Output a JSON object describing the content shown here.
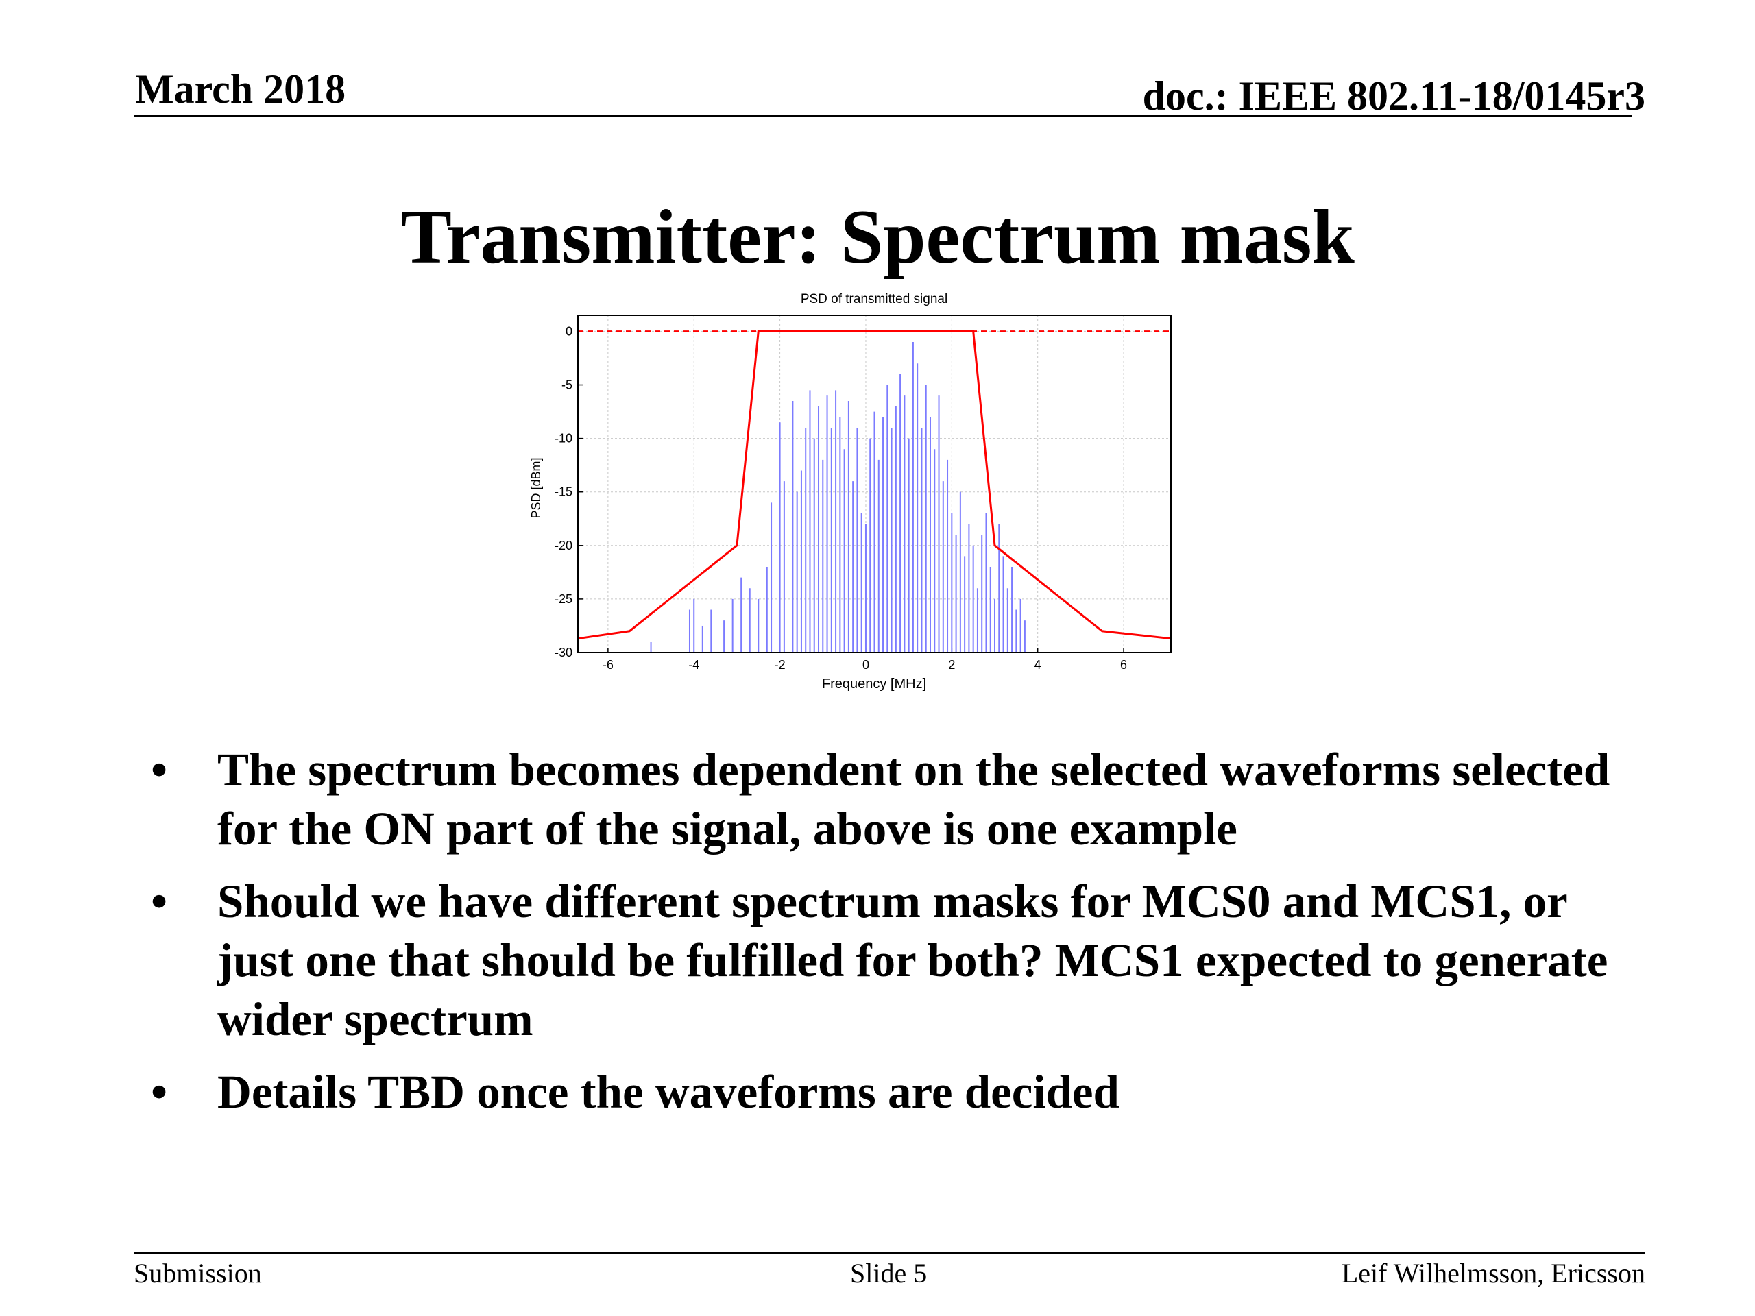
{
  "header": {
    "date": "March 2018",
    "doc": "doc.: IEEE 802.11-18/0145r3"
  },
  "title": "Transmitter: Spectrum mask",
  "chart_data": {
    "type": "line",
    "title": "PSD of transmitted signal",
    "xlabel": "Frequency [MHz]",
    "ylabel": "PSD [dBm]",
    "xlim": [
      -6.7,
      7.1
    ],
    "ylim": [
      -30,
      1.5
    ],
    "xticks": [
      -6,
      -4,
      -2,
      0,
      2,
      4,
      6
    ],
    "yticks": [
      0,
      -5,
      -10,
      -15,
      -20,
      -25,
      -30
    ],
    "grid": true,
    "colors": {
      "mask": "#ff0000",
      "psd": "#7b7bff"
    },
    "series": [
      {
        "x": [
          -6.7,
          -5.5,
          -3.0,
          -2.5,
          2.5,
          3.0,
          5.5,
          7.1
        ],
        "y": [
          -28.7,
          -28,
          -20,
          0,
          0,
          -20,
          -28,
          -28.7
        ],
        "style": "solid"
      },
      {
        "x": [
          -6.7,
          7.1
        ],
        "y": [
          0,
          0
        ],
        "style": "dashed"
      },
      {
        "x": [
          -5.0,
          -4.1,
          -4.0,
          -3.8,
          -3.6,
          -3.3,
          -3.1,
          -2.9,
          -2.7,
          -2.5,
          -2.3,
          -2.2,
          -2.0,
          -1.9,
          -1.7,
          -1.6,
          -1.5,
          -1.4,
          -1.3,
          -1.2,
          -1.1,
          -1.0,
          -0.9,
          -0.8,
          -0.7,
          -0.6,
          -0.5,
          -0.4,
          -0.3,
          -0.2,
          -0.1,
          0.0,
          0.1,
          0.2,
          0.3,
          0.4,
          0.5,
          0.6,
          0.7,
          0.8,
          0.9,
          1.0,
          1.1,
          1.2,
          1.3,
          1.4,
          1.5,
          1.6,
          1.7,
          1.8,
          1.9,
          2.0,
          2.1,
          2.2,
          2.3,
          2.4,
          2.5,
          2.6,
          2.7,
          2.8,
          2.9,
          3.0,
          3.1,
          3.2,
          3.3,
          3.4,
          3.5,
          3.6,
          3.7
        ],
        "y": [
          -29,
          -26,
          -25,
          -27.5,
          -26,
          -27,
          -25,
          -23,
          -24,
          -25,
          -22,
          -16,
          -8.5,
          -14,
          -6.5,
          -15,
          -13,
          -9,
          -5.5,
          -10,
          -7,
          -12,
          -6,
          -9,
          -5.5,
          -8,
          -11,
          -6.5,
          -14,
          -9,
          -17,
          -18,
          -10,
          -7.5,
          -12,
          -8,
          -5,
          -9,
          -7,
          -4,
          -6,
          -10,
          -1,
          -3,
          -9,
          -5,
          -8,
          -11,
          -6,
          -14,
          -12,
          -17,
          -19,
          -15,
          -21,
          -18,
          -20,
          -24,
          -19,
          -17,
          -22,
          -25,
          -18,
          -21,
          -24,
          -22,
          -26,
          -25,
          -27
        ]
      }
    ]
  },
  "bullets": [
    "The spectrum becomes dependent on the selected waveforms selected for the ON part of the signal, above is one example",
    "Should we have different spectrum masks for MCS0 and MCS1, or just one that should be fulfilled for both? MCS1 expected to generate wider spectrum",
    "Details TBD once the waveforms are decided"
  ],
  "bullet_symbol": "•",
  "footer": {
    "left": "Submission",
    "center": "Slide 5",
    "right": "Leif Wilhelmsson, Ericsson"
  }
}
